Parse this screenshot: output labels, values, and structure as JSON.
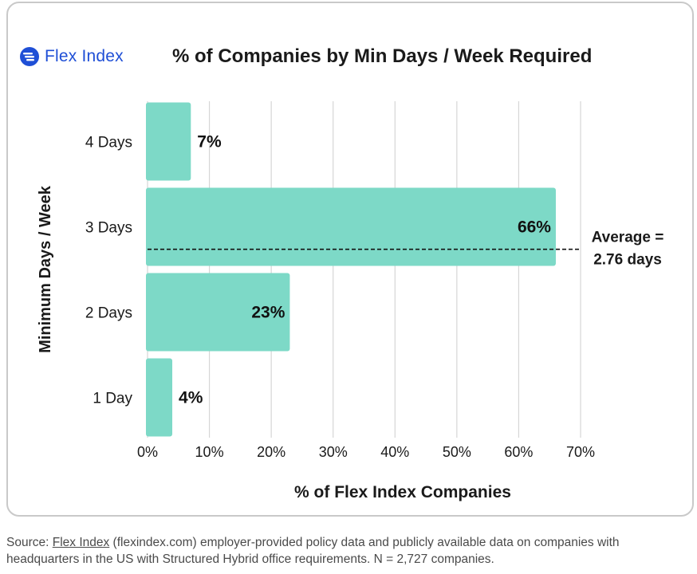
{
  "logo": {
    "text": "Flex Index",
    "icon": "flex-index-logo-icon",
    "color": "#1f4fd6"
  },
  "chart_data": {
    "type": "bar",
    "orientation": "horizontal",
    "title": "% of Companies by Min Days / Week Required",
    "xlabel": "% of Flex Index Companies",
    "ylabel": "Minimum Days / Week",
    "categories": [
      "4 Days",
      "3 Days",
      "2 Days",
      "1 Day"
    ],
    "values": [
      7,
      66,
      23,
      4
    ],
    "data_labels": [
      "7%",
      "66%",
      "23%",
      "4%"
    ],
    "xlim": [
      0,
      70
    ],
    "xticks": [
      0,
      10,
      20,
      30,
      40,
      50,
      60,
      70
    ],
    "xtick_labels": [
      "0%",
      "10%",
      "20%",
      "30%",
      "40%",
      "50%",
      "60%",
      "70%"
    ],
    "grid": "vertical",
    "bar_color": "#7dd9c7",
    "annotation": {
      "text_line1": "Average =",
      "text_line2": "2.76 days",
      "value": 2.76,
      "style": "dashed"
    }
  },
  "footer": {
    "prefix": "Source: ",
    "link_text": "Flex Index",
    "rest_line1": " (flexindex.com) employer-provided policy data and publicly available data on companies with",
    "line2": "headquarters in the US with Structured Hybrid office requirements. N = 2,727 companies."
  }
}
